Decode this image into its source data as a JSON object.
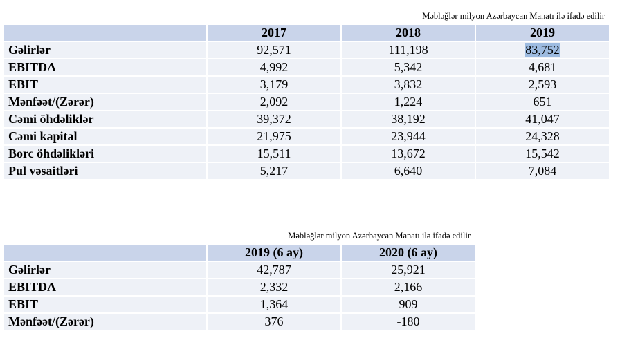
{
  "tables": [
    {
      "note": "Məbləğlər milyon Azərbaycan Manatı ilə ifadə edilir",
      "columns": [
        "2017",
        "2018",
        "2019"
      ],
      "rows": [
        {
          "label": "Gəlirlər",
          "values": [
            "92,571",
            "111,198",
            "83,752"
          ]
        },
        {
          "label": "EBITDA",
          "values": [
            "4,992",
            "5,342",
            "4,681"
          ]
        },
        {
          "label": "EBIT",
          "values": [
            "3,179",
            "3,832",
            "2,593"
          ]
        },
        {
          "label": "Mənfəət/(Zərər)",
          "values": [
            "2,092",
            "1,224",
            "651"
          ]
        },
        {
          "label": "Cəmi öhdəliklər",
          "values": [
            "39,372",
            "38,192",
            "41,047"
          ]
        },
        {
          "label": "Cəmi kapital",
          "values": [
            "21,975",
            "23,944",
            "24,328"
          ]
        },
        {
          "label": "Borc öhdəlikləri",
          "values": [
            "15,511",
            "13,672",
            "15,542"
          ]
        },
        {
          "label": "Pul vəsaitləri",
          "values": [
            "5,217",
            "6,640",
            "7,084"
          ]
        }
      ]
    },
    {
      "note": "Məbləğlər milyon Azərbaycan Manatı ilə ifadə edilir",
      "columns": [
        "2019 (6 ay)",
        "2020 (6 ay)"
      ],
      "rows": [
        {
          "label": "Gəlirlər",
          "values": [
            "42,787",
            "25,921"
          ]
        },
        {
          "label": "EBITDA",
          "values": [
            "2,332",
            "2,166"
          ]
        },
        {
          "label": "EBIT",
          "values": [
            "1,364",
            "909"
          ]
        },
        {
          "label": "Mənfəət/(Zərər)",
          "values": [
            "376",
            "-180"
          ]
        }
      ]
    }
  ]
}
